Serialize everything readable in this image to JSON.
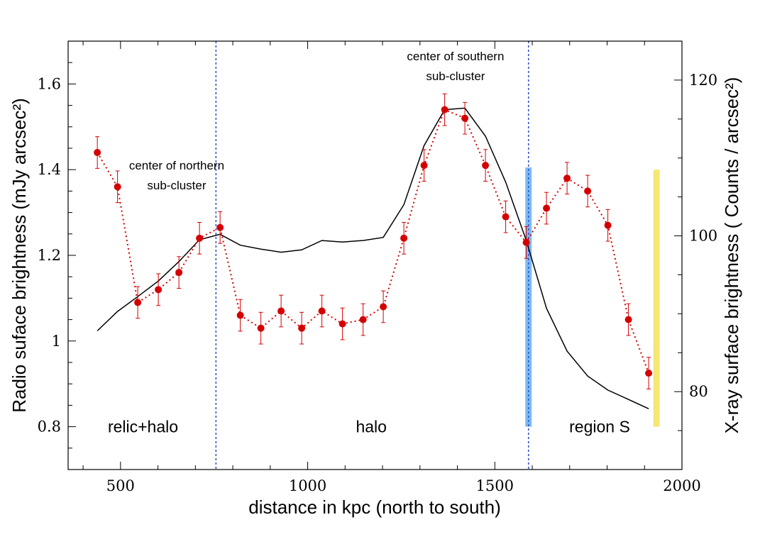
{
  "chart_data": {
    "type": "line",
    "title": "",
    "xlabel": "distance in kpc (north to south)",
    "ylabel": "Radio suface brightness (mJy arcsec²)",
    "y2label": "X-ray surface brightness ( Counts / arcsec²)",
    "xlim": [
      360,
      2000
    ],
    "ylim": [
      0.7,
      1.7
    ],
    "y2lim": [
      70,
      125
    ],
    "x_ticks": [
      500,
      1000,
      1500,
      2000
    ],
    "y_ticks": [
      0.8,
      1,
      1.2,
      1.4,
      1.6
    ],
    "y_tick_labels": [
      "0.8",
      "1",
      "1.2",
      "1.4",
      "1.6"
    ],
    "y2_ticks": [
      80,
      100,
      120
    ],
    "grid": false,
    "colors": {
      "radio": "#d40000",
      "xray": "#000000",
      "divider": "#3355cc",
      "blue_band": "#5aaaf0",
      "yellow_band": "#f5e66e"
    },
    "series": [
      {
        "kind": "radio",
        "x": [
          438,
          492,
          546,
          601,
          656,
          711,
          766,
          820,
          875,
          929,
          984,
          1038,
          1093,
          1148,
          1202,
          1257,
          1311,
          1366,
          1420,
          1475,
          1529,
          1584,
          1638,
          1693,
          1748,
          1802,
          1857,
          1911
        ],
        "y": [
          1.44,
          1.36,
          1.09,
          1.12,
          1.16,
          1.24,
          1.265,
          1.06,
          1.03,
          1.07,
          1.03,
          1.07,
          1.04,
          1.05,
          1.08,
          1.24,
          1.41,
          1.54,
          1.52,
          1.41,
          1.29,
          1.23,
          1.31,
          1.38,
          1.35,
          1.27,
          1.05,
          0.925
        ],
        "err": [
          0.037,
          0.037,
          0.037,
          0.037,
          0.037,
          0.037,
          0.037,
          0.037,
          0.037,
          0.037,
          0.037,
          0.037,
          0.037,
          0.037,
          0.037,
          0.037,
          0.037,
          0.037,
          0.037,
          0.037,
          0.037,
          0.037,
          0.037,
          0.037,
          0.037,
          0.037,
          0.037,
          0.037
        ]
      },
      {
        "kind": "xray",
        "axis": "y2",
        "x": [
          438,
          492,
          546,
          601,
          656,
          711,
          766,
          820,
          875,
          929,
          984,
          1038,
          1093,
          1148,
          1202,
          1257,
          1311,
          1366,
          1420,
          1475,
          1529,
          1584,
          1638,
          1693,
          1748,
          1802,
          1857,
          1911
        ],
        "y": [
          87.8,
          90.3,
          92.2,
          94.2,
          96.7,
          99.5,
          100.2,
          98.8,
          98.3,
          97.9,
          98.2,
          99.4,
          99.2,
          99.4,
          99.8,
          104.0,
          111.6,
          116.2,
          116.4,
          112.8,
          106.9,
          99.4,
          90.7,
          85.2,
          82.0,
          80.2,
          79.0,
          77.8
        ]
      }
    ],
    "vertical_lines": [
      755,
      1590
    ],
    "bands": [
      {
        "kind": "blue",
        "x": 1590,
        "y_from": 0.8,
        "y_to": 1.405
      },
      {
        "kind": "yellow",
        "x": 1932,
        "y_from": 0.8,
        "y_to": 1.4
      }
    ],
    "region_labels": [
      {
        "text": "relic+halo",
        "x": 560,
        "y": 0.8
      },
      {
        "text": "halo",
        "x": 1170,
        "y": 0.8
      },
      {
        "text": "region S",
        "x": 1780,
        "y": 0.8
      }
    ],
    "annotations": [
      {
        "lines": [
          "center of northern",
          "sub-cluster"
        ],
        "x": 650,
        "y": 1.4
      },
      {
        "lines": [
          "center of southern",
          "sub-cluster"
        ],
        "x": 1395,
        "y": 1.655
      }
    ]
  }
}
